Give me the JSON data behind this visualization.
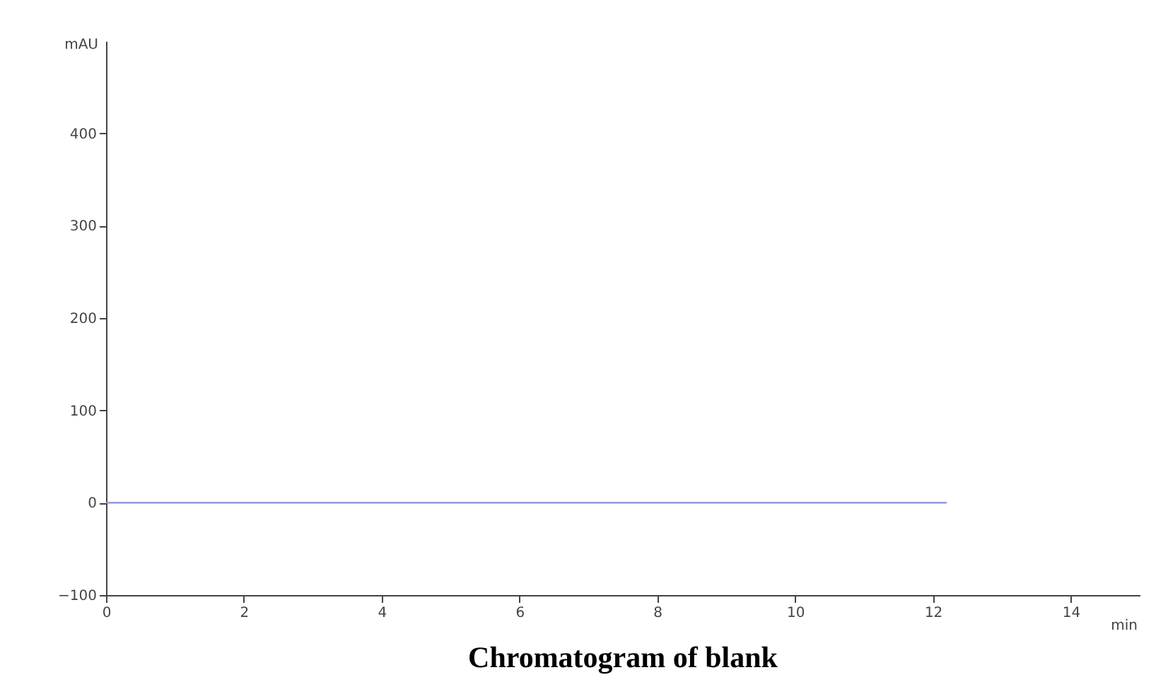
{
  "chart_data": {
    "type": "line",
    "title": "Chromatogram of blank",
    "xlabel": "min",
    "ylabel": "mAU",
    "x": [
      0,
      12.2
    ],
    "series": [
      {
        "color": "#8c8cd8",
        "values": [
          0,
          0
        ]
      }
    ],
    "xlim": [
      0,
      15
    ],
    "xticks": [
      0,
      2,
      4,
      6,
      8,
      10,
      12,
      14
    ],
    "ylim": [
      -100,
      500
    ],
    "yticks": [
      -100,
      0,
      100,
      200,
      300,
      400
    ],
    "grid": false,
    "marker": "none",
    "line_style": "solid"
  }
}
